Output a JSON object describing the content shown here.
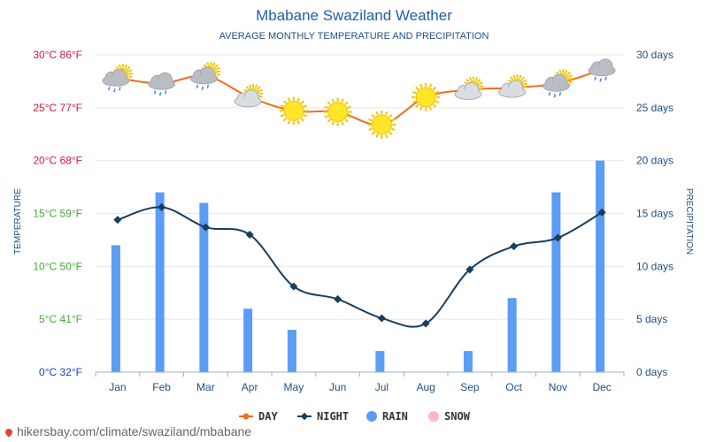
{
  "header": {
    "title": "Mbabane Swaziland Weather",
    "subtitle": "AVERAGE MONTHLY TEMPERATURE AND PRECIPITATION"
  },
  "watermark": "hikersbay.com/climate/swaziland/mbabane",
  "chart_data": {
    "type": "line",
    "title": "Mbabane Swaziland Weather",
    "subtitle": "AVERAGE MONTHLY TEMPERATURE AND PRECIPITATION",
    "categories": [
      "Jan",
      "Feb",
      "Mar",
      "Apr",
      "May",
      "Jun",
      "Jul",
      "Aug",
      "Sep",
      "Oct",
      "Nov",
      "Dec"
    ],
    "left_axis": {
      "label": "TEMPERATURE",
      "range": [
        0,
        30
      ],
      "ticks": [
        "0°C 32°F",
        "5°C 41°F",
        "10°C 50°F",
        "15°C 59°F",
        "20°C 68°F",
        "25°C 77°F",
        "30°C 86°F"
      ],
      "tick_colors": [
        "#1a3fbf",
        "#44a832",
        "#44a832",
        "#44a832",
        "#d9163c",
        "#d9163c",
        "#d9163c"
      ]
    },
    "right_axis": {
      "label": "PRECIPITATION",
      "range": [
        0,
        30
      ],
      "ticks": [
        "0 days",
        "5 days",
        "10 days",
        "15 days",
        "20 days",
        "25 days",
        "30 days"
      ]
    },
    "series": [
      {
        "name": "DAY",
        "type": "line",
        "color": "#f26c1f",
        "values": [
          27.8,
          27.3,
          28.0,
          26.0,
          24.7,
          24.6,
          23.4,
          26.0,
          26.7,
          26.9,
          27.3,
          28.6
        ]
      },
      {
        "name": "NIGHT",
        "type": "line",
        "color": "#173f5f",
        "values": [
          14.4,
          15.6,
          13.7,
          13.0,
          8.1,
          6.9,
          5.1,
          4.6,
          9.7,
          11.9,
          12.7,
          15.1
        ]
      },
      {
        "name": "RAIN",
        "type": "bar",
        "color": "#5b9cf4",
        "values": [
          12,
          17,
          16,
          6,
          4,
          0,
          2,
          0,
          2,
          7,
          17,
          20
        ]
      },
      {
        "name": "SNOW",
        "type": "bar",
        "color": "#ffb6c8",
        "values": [
          0,
          0,
          0,
          0,
          0,
          0,
          0,
          0,
          0,
          0,
          0,
          0
        ]
      }
    ],
    "day_icons": [
      "cloud-sun-rain",
      "cloud-rain",
      "cloud-sun-rain",
      "cloud-sun",
      "sun",
      "sun",
      "sun",
      "sun",
      "cloud-sun",
      "cloud-sun",
      "cloud-sun-rain",
      "cloud-rain"
    ],
    "grid": true,
    "legend_position": "bottom-center"
  }
}
